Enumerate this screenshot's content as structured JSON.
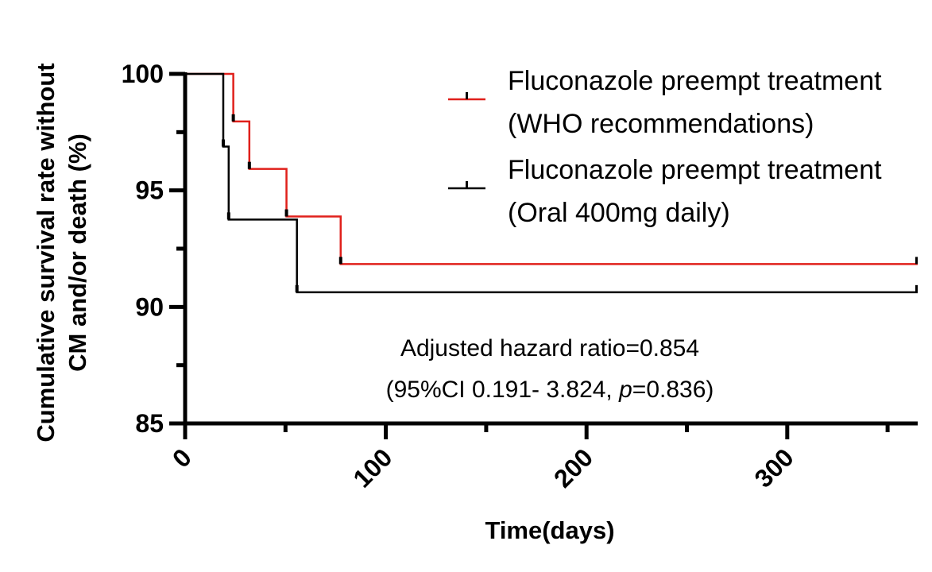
{
  "chart_data": {
    "type": "line",
    "subtype": "kaplan-meier-step",
    "title": "",
    "xlabel": "Time(days)",
    "ylabel_lines": [
      "Cumulative survival rate without",
      "CM and/or death (%)"
    ],
    "xlim": [
      0,
      365
    ],
    "ylim": [
      85,
      100
    ],
    "x_ticks": [
      0,
      100,
      200,
      300
    ],
    "x_tick_labels": [
      "0",
      "100",
      "200",
      "300"
    ],
    "x_minor_ticks": [
      50,
      150,
      250,
      350
    ],
    "y_ticks": [
      85,
      90,
      95,
      100
    ],
    "y_tick_labels": [
      "85",
      "90",
      "95",
      "100"
    ],
    "y_minor_ticks": [
      87.5,
      92.5,
      97.5
    ],
    "grid": false,
    "legend_position": "top-right",
    "series": [
      {
        "name": "Fluconazole preempt treatment (WHO recommendations)",
        "legend_lines": [
          "Fluconazole preempt treatment",
          "(WHO recommendations)"
        ],
        "color": "#e0201b",
        "steps": [
          [
            0,
            100
          ],
          [
            24,
            97.96
          ],
          [
            32,
            95.92
          ],
          [
            50.5,
            93.88
          ],
          [
            77.5,
            91.84
          ]
        ],
        "end_x": 365
      },
      {
        "name": "Fluconazole preempt treatment (Oral 400mg daily)",
        "legend_lines": [
          "Fluconazole preempt treatment",
          "(Oral 400mg daily)"
        ],
        "color": "#000000",
        "steps": [
          [
            0,
            100
          ],
          [
            19,
            96.88
          ],
          [
            21.7,
            93.75
          ],
          [
            55.7,
            90.63
          ]
        ],
        "end_x": 365
      }
    ],
    "annotation": {
      "line1": "Adjusted hazard ratio=0.854",
      "line2_prefix": "(95%CI 0.191- 3.824, ",
      "line2_p": "p",
      "line2_suffix": "=0.836)"
    }
  }
}
